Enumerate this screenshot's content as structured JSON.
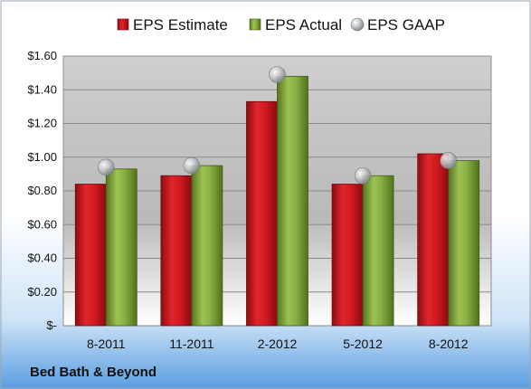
{
  "chart_data": {
    "type": "bar",
    "caption": "Bed Bath & Beyond",
    "categories": [
      "8-2011",
      "11-2011",
      "2-2012",
      "5-2012",
      "8-2012"
    ],
    "series": [
      {
        "name": "EPS Estimate",
        "kind": "bar",
        "color": "#c8161d",
        "values": [
          0.84,
          0.89,
          1.33,
          0.84,
          1.02
        ]
      },
      {
        "name": "EPS Actual",
        "kind": "bar",
        "color": "#7ea33a",
        "values": [
          0.93,
          0.95,
          1.48,
          0.89,
          0.98
        ]
      },
      {
        "name": "EPS GAAP",
        "kind": "marker",
        "color": "#b8bcc0",
        "values": [
          0.94,
          0.95,
          1.49,
          0.89,
          0.98
        ]
      }
    ],
    "y_ticks": [
      "$-",
      "$0.20",
      "$0.40",
      "$0.60",
      "$0.80",
      "$1.00",
      "$1.20",
      "$1.40",
      "$1.60"
    ],
    "ylim": [
      0,
      1.6
    ],
    "grid": true,
    "legend_position": "top"
  }
}
